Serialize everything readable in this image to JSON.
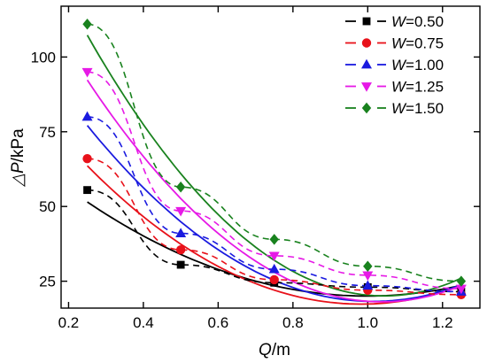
{
  "chart_data": {
    "type": "scatter",
    "xlabel_var": "Q",
    "xlabel_unit": "/m",
    "ylabel_var": "△P",
    "ylabel_unit": "/kPa",
    "xlim": [
      0.18,
      1.3
    ],
    "ylim": [
      16,
      117
    ],
    "xticks": [
      0.2,
      0.4,
      0.6,
      0.8,
      1.0,
      1.2
    ],
    "xtick_labels": [
      "0.2",
      "0.4",
      "0.6",
      "0.8",
      "1.0",
      "1.2"
    ],
    "yticks": [
      25,
      50,
      75,
      100
    ],
    "ytick_labels": [
      "25",
      "50",
      "75",
      "100"
    ],
    "grid": false,
    "legend_position": "top-right",
    "legend_var": "W",
    "markers_x": [
      0.25,
      0.5,
      0.75,
      1.0,
      1.25
    ],
    "series": [
      {
        "name": "=0.50",
        "color": "#000000",
        "marker": "square",
        "points": [
          55.5,
          30.5,
          24.5,
          23.0,
          21.5
        ],
        "fit": [
          0.25,
          51.5,
          29.4,
          23.5,
          23.6
        ]
      },
      {
        "name": "=0.75",
        "color": "#e8111a",
        "marker": "circle",
        "points": [
          66.0,
          35.5,
          25.5,
          22.0,
          20.5
        ],
        "fit": [
          0.25,
          63.6,
          35.5,
          22.0,
          23.5
        ]
      },
      {
        "name": "=1.00",
        "color": "#1a1adf",
        "marker": "triangle-up",
        "points": [
          80.0,
          41.0,
          29.0,
          23.5,
          21.5
        ],
        "fit": [
          0.25,
          77.1,
          43.0,
          25.3,
          23.8
        ]
      },
      {
        "name": "=1.25",
        "color": "#e619e6",
        "marker": "triangle-down",
        "points": [
          95.0,
          48.5,
          33.5,
          27.0,
          22.5
        ],
        "fit": [
          0.25,
          92.3,
          49.0,
          28.0,
          23.5
        ]
      },
      {
        "name": "=1.50",
        "color": "#19821e",
        "marker": "diamond",
        "points": [
          111.0,
          56.5,
          39.0,
          30.0,
          25.0
        ],
        "fit": [
          0.25,
          107.3,
          56.0,
          32.0,
          26.0
        ]
      }
    ]
  }
}
